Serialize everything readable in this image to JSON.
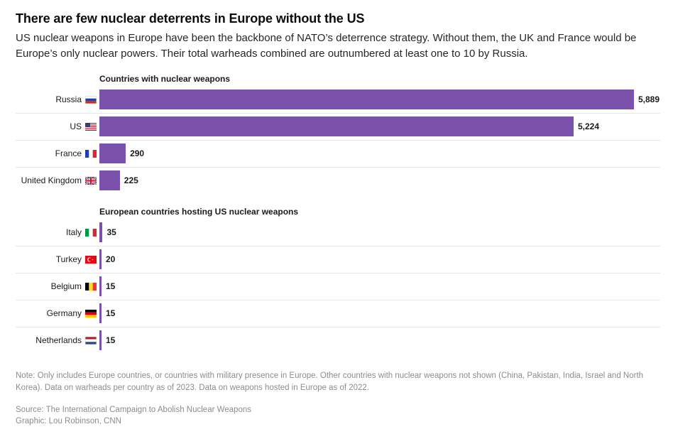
{
  "header": {
    "title": "There are few nuclear deterrents in Europe without the US",
    "subtitle": "US nuclear weapons in Europe have been the backbone of NATO’s deterrence strategy. Without them, the UK and France would be Europe’s only nuclear powers. Their total warheads combined are outnumbered at least one to 10 by Russia."
  },
  "chart_data": {
    "type": "bar",
    "orientation": "horizontal",
    "xlim": [
      0,
      5889
    ],
    "bar_color": "#7b52ab",
    "groups": [
      {
        "title": "Countries with nuclear weapons",
        "items": [
          {
            "label": "Russia",
            "flag": "russia-flag",
            "value": 5889,
            "value_label": "5,889"
          },
          {
            "label": "US",
            "flag": "us-flag",
            "value": 5224,
            "value_label": "5,224"
          },
          {
            "label": "France",
            "flag": "france-flag",
            "value": 290,
            "value_label": "290"
          },
          {
            "label": "United Kingdom",
            "flag": "uk-flag",
            "value": 225,
            "value_label": "225"
          }
        ]
      },
      {
        "title": "European countries hosting US nuclear weapons",
        "items": [
          {
            "label": "Italy",
            "flag": "italy-flag",
            "value": 35,
            "value_label": "35"
          },
          {
            "label": "Turkey",
            "flag": "turkey-flag",
            "value": 20,
            "value_label": "20"
          },
          {
            "label": "Belgium",
            "flag": "belgium-flag",
            "value": 15,
            "value_label": "15"
          },
          {
            "label": "Germany",
            "flag": "germany-flag",
            "value": 15,
            "value_label": "15"
          },
          {
            "label": "Netherlands",
            "flag": "netherlands-flag",
            "value": 15,
            "value_label": "15"
          }
        ]
      }
    ]
  },
  "footer": {
    "note": "Note: Only includes Europe countries, or countries with military presence in Europe. Other countries with nuclear weapons not shown (China, Pakistan, India, Israel and North Korea). Data on warheads per country as of 2023. Data on weapons hosted in Europe as of 2022.",
    "source": "Source: The International Campaign to Abolish Nuclear Weapons",
    "credit": "Graphic: Lou Robinson, CNN"
  }
}
